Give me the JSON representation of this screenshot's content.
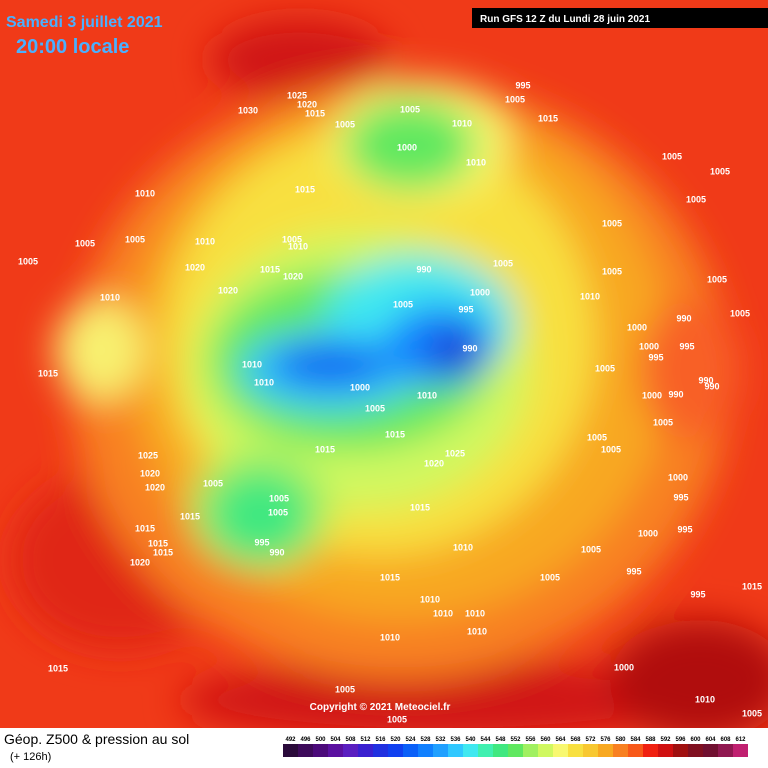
{
  "header": {
    "date": "Samedi 3 juillet 2021",
    "time": "20:00 locale",
    "run": "Run GFS 12 Z du Lundi 28 juin 2021"
  },
  "copyright": "Copyright © 2021 Meteociel.fr",
  "legend": {
    "title": "Géop. Z500 & pression au sol",
    "lead": "(+ 126h)",
    "values": [
      492,
      496,
      500,
      504,
      508,
      512,
      516,
      520,
      524,
      528,
      532,
      536,
      540,
      544,
      548,
      552,
      556,
      560,
      564,
      568,
      572,
      576,
      580,
      584,
      588,
      592,
      596,
      600,
      604,
      608,
      612
    ],
    "colors": [
      "#2a0a3a",
      "#3d0a5a",
      "#4b0a7a",
      "#5a10a0",
      "#5a1ec0",
      "#3a20d0",
      "#2030e0",
      "#1040f0",
      "#0a60f8",
      "#1080ff",
      "#20a0ff",
      "#30c8ff",
      "#40e8f0",
      "#40f0b0",
      "#40e880",
      "#60e860",
      "#a0f060",
      "#d0f860",
      "#f8f870",
      "#f8e040",
      "#f8c830",
      "#f8a820",
      "#f88020",
      "#f85818",
      "#f02010",
      "#d01010",
      "#a01010",
      "#801020",
      "#701030",
      "#901850",
      "#c02070"
    ]
  },
  "isobar_labels": [
    1030,
    1025,
    1020,
    1015,
    1005,
    1005,
    1010,
    1000,
    995,
    1005,
    1015,
    1010,
    1010,
    1015,
    1005,
    1005,
    1010,
    1005,
    1010,
    1005,
    1020,
    1015,
    1020,
    990,
    1005,
    1020,
    1000,
    1010,
    1005,
    995,
    990,
    1010,
    1015,
    1010,
    1000,
    1010,
    1005,
    1015,
    1015,
    1025,
    1020,
    1025,
    1020,
    1020,
    1005,
    1005,
    1015,
    1005,
    1015,
    1015,
    995,
    990,
    1015,
    1015,
    1010,
    1020,
    1015,
    1005,
    1010,
    1010,
    1010,
    1010,
    1010,
    1015,
    1005,
    1005,
    1000,
    1010,
    1005,
    1005,
    1005,
    1005,
    1005,
    1005,
    1010,
    1005,
    1005,
    990,
    1000,
    1000,
    995,
    995,
    1005,
    990,
    990,
    1000,
    990,
    1005,
    1005,
    1005,
    1000,
    995,
    995,
    1000,
    1005,
    995,
    995,
    1015
  ]
}
